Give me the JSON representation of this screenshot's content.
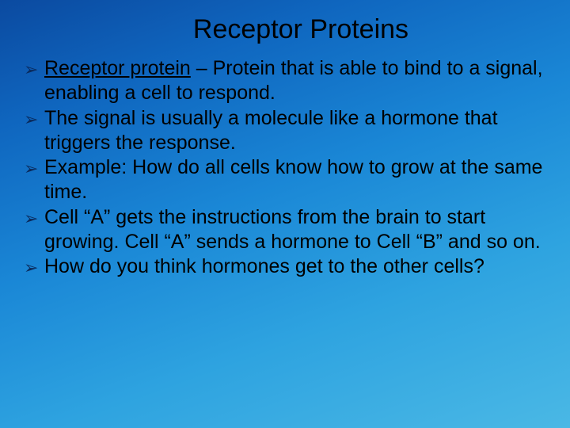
{
  "slide": {
    "title": "Receptor Proteins",
    "title_color": "#000000",
    "title_fontsize": 34,
    "background_gradient": [
      "#0b4aa0",
      "#0f66bf",
      "#1a87d6",
      "#2ea3e0",
      "#4ab8e5"
    ],
    "bullet_marker": "➢",
    "bullet_marker_color": "#0a2a5c",
    "text_color": "#000000",
    "body_fontsize": 25,
    "bullets": [
      {
        "term": "Receptor protein",
        "rest": " – Protein that is able to bind to a signal, enabling a cell to respond."
      },
      {
        "text": "The signal is usually a molecule like a hormone that triggers the response."
      },
      {
        "text": "Example: How do all cells know how to grow at the same time."
      },
      {
        "text": "Cell “A” gets the instructions from the brain to start growing.  Cell “A” sends a hormone to Cell “B” and so on."
      },
      {
        "text": "How do you think hormones get to the other cells?"
      }
    ]
  }
}
